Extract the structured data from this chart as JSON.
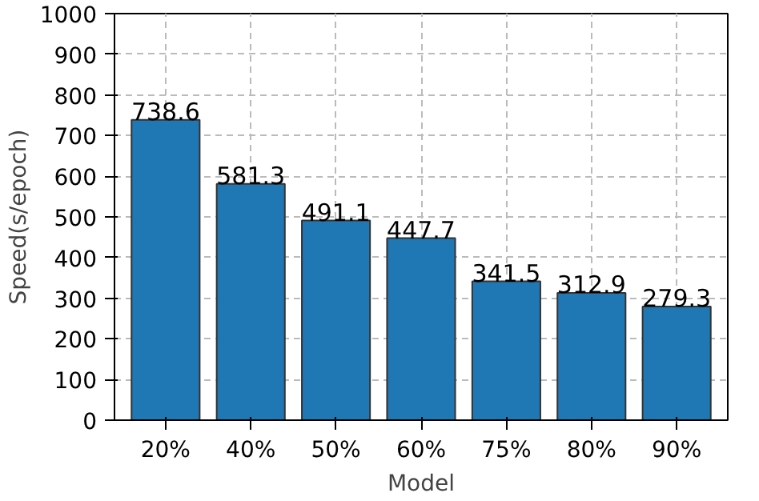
{
  "chart_data": {
    "type": "bar",
    "xlabel": "Model",
    "ylabel": "Speed(s/epoch)",
    "categories": [
      "20%",
      "40%",
      "50%",
      "60%",
      "75%",
      "80%",
      "90%"
    ],
    "values": [
      738.6,
      581.3,
      491.1,
      447.7,
      341.5,
      312.9,
      279.3
    ],
    "color": "#1f77b4",
    "data_labels": true,
    "grid": true,
    "ylim": [
      0,
      1000
    ],
    "yticks": [
      0,
      100,
      200,
      300,
      400,
      500,
      600,
      700,
      800,
      900,
      1000
    ]
  }
}
